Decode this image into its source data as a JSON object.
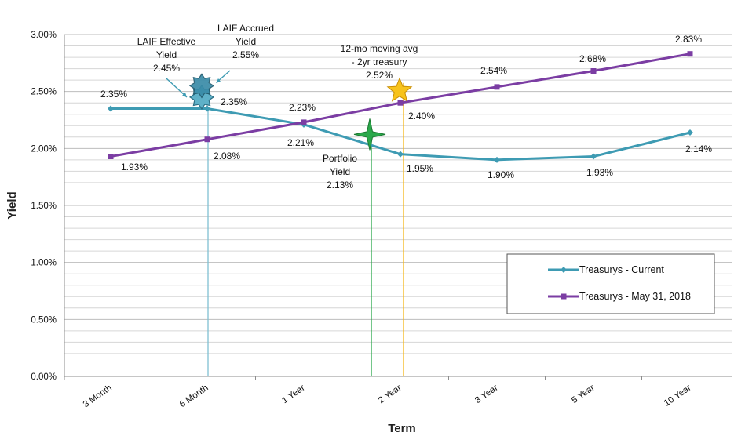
{
  "chart_data": {
    "type": "line",
    "title": "",
    "xlabel": "Term",
    "ylabel": "Yield",
    "categories": [
      "3 Month",
      "6 Month",
      "1 Year",
      "2 Year",
      "3 Year",
      "5 Year",
      "10 Year"
    ],
    "ylim": [
      0,
      3
    ],
    "yticks": [
      "0.00%",
      "0.50%",
      "1.00%",
      "1.50%",
      "2.00%",
      "2.50%",
      "3.00%"
    ],
    "grid": true,
    "legend_position": "bottom-right",
    "series": [
      {
        "name": "Treasurys - Current",
        "color": "#3e9bb3",
        "marker": "diamond",
        "values": [
          2.35,
          2.35,
          2.21,
          1.95,
          1.9,
          1.93,
          2.14
        ],
        "labels": [
          "2.35%",
          "2.35%",
          "2.21%",
          "1.95%",
          "1.90%",
          "1.93%",
          "2.14%"
        ]
      },
      {
        "name": "Treasurys - May 31, 2018",
        "color": "#7b3da3",
        "marker": "square",
        "values": [
          1.93,
          2.08,
          2.23,
          2.4,
          2.54,
          2.68,
          2.83
        ],
        "labels": [
          "1.93%",
          "2.08%",
          "2.23%",
          "2.40%",
          "2.54%",
          "2.68%",
          "2.83%"
        ]
      }
    ],
    "annotations": [
      {
        "id": "laif-effective",
        "lines": [
          "LAIF Effective",
          "Yield",
          "2.45%"
        ],
        "value": 2.45,
        "marker": "star-8",
        "color": "#2e7f97"
      },
      {
        "id": "laif-accrued",
        "lines": [
          "LAIF Accrued",
          "Yield",
          "2.55%"
        ],
        "value": 2.55,
        "marker": "star-8",
        "color": "#3b8fab"
      },
      {
        "id": "moving-avg",
        "lines": [
          "12-mo moving avg",
          "- 2yr treasury",
          "2.52%"
        ],
        "value": 2.52,
        "marker": "star-5",
        "color": "#f7c31c"
      },
      {
        "id": "portfolio",
        "lines": [
          "Portfolio",
          "Yield",
          "2.13%"
        ],
        "value": 2.13,
        "marker": "star-4",
        "color": "#2aa84a"
      }
    ]
  }
}
